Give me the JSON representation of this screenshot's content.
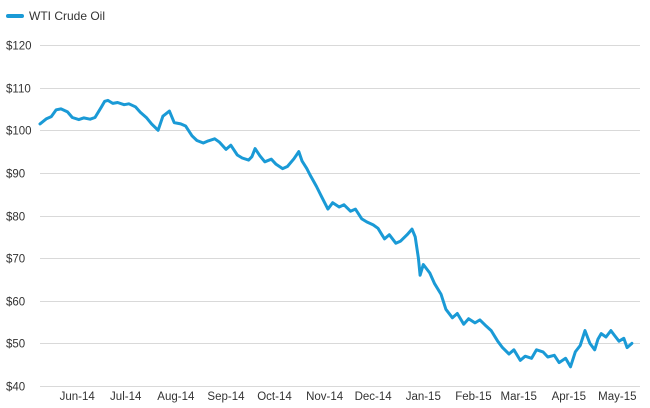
{
  "colors": {
    "series": "#1a9ad6",
    "grid": "#d9d9d9",
    "text": "#333333"
  },
  "chart_data": {
    "type": "line",
    "title": "",
    "xlabel": "",
    "ylabel": "",
    "legend_position": "top-left",
    "grid": "horizontal",
    "ylim": [
      40,
      120
    ],
    "xlim": [
      "2014-05-23",
      "2015-05-29"
    ],
    "y_ticks": [
      {
        "value": 120,
        "label": "$120"
      },
      {
        "value": 110,
        "label": "$110"
      },
      {
        "value": 100,
        "label": "$100"
      },
      {
        "value": 90,
        "label": "$90"
      },
      {
        "value": 80,
        "label": "$80"
      },
      {
        "value": 70,
        "label": "$70"
      },
      {
        "value": 60,
        "label": "$60"
      },
      {
        "value": 50,
        "label": "$50"
      },
      {
        "value": 40,
        "label": "$40"
      }
    ],
    "x_ticks": [
      {
        "date": "2014-06-15",
        "label": "Jun-14"
      },
      {
        "date": "2014-07-15",
        "label": "Jul-14"
      },
      {
        "date": "2014-08-15",
        "label": "Aug-14"
      },
      {
        "date": "2014-09-15",
        "label": "Sep-14"
      },
      {
        "date": "2014-10-15",
        "label": "Oct-14"
      },
      {
        "date": "2014-11-15",
        "label": "Nov-14"
      },
      {
        "date": "2014-12-15",
        "label": "Dec-14"
      },
      {
        "date": "2015-01-15",
        "label": "Jan-15"
      },
      {
        "date": "2015-02-15",
        "label": "Feb-15"
      },
      {
        "date": "2015-03-15",
        "label": "Mar-15"
      },
      {
        "date": "2015-04-15",
        "label": "Apr-15"
      },
      {
        "date": "2015-05-15",
        "label": "May-15"
      }
    ],
    "series": [
      {
        "name": "WTI Crude Oil",
        "points": [
          [
            "2014-05-23",
            101.5
          ],
          [
            "2014-05-27",
            102.7
          ],
          [
            "2014-05-30",
            103.2
          ],
          [
            "2014-06-02",
            104.8
          ],
          [
            "2014-06-05",
            105.0
          ],
          [
            "2014-06-09",
            104.3
          ],
          [
            "2014-06-12",
            103.0
          ],
          [
            "2014-06-16",
            102.5
          ],
          [
            "2014-06-19",
            102.9
          ],
          [
            "2014-06-23",
            102.6
          ],
          [
            "2014-06-26",
            103.0
          ],
          [
            "2014-06-30",
            105.5
          ],
          [
            "2014-07-02",
            106.8
          ],
          [
            "2014-07-04",
            107.0
          ],
          [
            "2014-07-07",
            106.3
          ],
          [
            "2014-07-10",
            106.5
          ],
          [
            "2014-07-14",
            106.0
          ],
          [
            "2014-07-17",
            106.2
          ],
          [
            "2014-07-21",
            105.5
          ],
          [
            "2014-07-24",
            104.2
          ],
          [
            "2014-07-28",
            102.9
          ],
          [
            "2014-07-31",
            101.5
          ],
          [
            "2014-08-04",
            100.0
          ],
          [
            "2014-08-07",
            103.3
          ],
          [
            "2014-08-11",
            104.5
          ],
          [
            "2014-08-14",
            101.8
          ],
          [
            "2014-08-18",
            101.5
          ],
          [
            "2014-08-21",
            101.0
          ],
          [
            "2014-08-25",
            98.7
          ],
          [
            "2014-08-28",
            97.6
          ],
          [
            "2014-09-01",
            97.0
          ],
          [
            "2014-09-04",
            97.5
          ],
          [
            "2014-09-08",
            98.0
          ],
          [
            "2014-09-11",
            97.2
          ],
          [
            "2014-09-15",
            95.5
          ],
          [
            "2014-09-18",
            96.5
          ],
          [
            "2014-09-22",
            94.2
          ],
          [
            "2014-09-25",
            93.5
          ],
          [
            "2014-09-29",
            93.0
          ],
          [
            "2014-10-01",
            93.8
          ],
          [
            "2014-10-03",
            95.7
          ],
          [
            "2014-10-06",
            94.0
          ],
          [
            "2014-10-09",
            92.6
          ],
          [
            "2014-10-13",
            93.2
          ],
          [
            "2014-10-16",
            92.0
          ],
          [
            "2014-10-20",
            91.0
          ],
          [
            "2014-10-23",
            91.5
          ],
          [
            "2014-10-27",
            93.3
          ],
          [
            "2014-10-30",
            95.0
          ],
          [
            "2014-11-01",
            92.8
          ],
          [
            "2014-11-04",
            91.0
          ],
          [
            "2014-11-06",
            89.5
          ],
          [
            "2014-11-10",
            86.8
          ],
          [
            "2014-11-13",
            84.5
          ],
          [
            "2014-11-17",
            81.5
          ],
          [
            "2014-11-20",
            83.0
          ],
          [
            "2014-11-24",
            82.0
          ],
          [
            "2014-11-27",
            82.5
          ],
          [
            "2014-12-01",
            81.0
          ],
          [
            "2014-12-04",
            81.5
          ],
          [
            "2014-12-08",
            79.2
          ],
          [
            "2014-12-11",
            78.5
          ],
          [
            "2014-12-15",
            77.8
          ],
          [
            "2014-12-18",
            77.0
          ],
          [
            "2014-12-22",
            74.5
          ],
          [
            "2014-12-25",
            75.5
          ],
          [
            "2014-12-29",
            73.5
          ],
          [
            "2015-01-01",
            74.0
          ],
          [
            "2015-01-05",
            75.5
          ],
          [
            "2015-01-08",
            76.8
          ],
          [
            "2015-01-10",
            75.0
          ],
          [
            "2015-01-12",
            70.0
          ],
          [
            "2015-01-13",
            66.0
          ],
          [
            "2015-01-15",
            68.5
          ],
          [
            "2015-01-19",
            66.5
          ],
          [
            "2015-01-22",
            64.0
          ],
          [
            "2015-01-26",
            61.5
          ],
          [
            "2015-01-29",
            58.0
          ],
          [
            "2015-02-02",
            56.0
          ],
          [
            "2015-02-05",
            57.0
          ],
          [
            "2015-02-09",
            54.5
          ],
          [
            "2015-02-12",
            55.8
          ],
          [
            "2015-02-16",
            54.8
          ],
          [
            "2015-02-19",
            55.5
          ],
          [
            "2015-02-23",
            54.0
          ],
          [
            "2015-02-26",
            53.0
          ],
          [
            "2015-03-02",
            50.5
          ],
          [
            "2015-03-05",
            49.0
          ],
          [
            "2015-03-09",
            47.5
          ],
          [
            "2015-03-12",
            48.5
          ],
          [
            "2015-03-16",
            46.0
          ],
          [
            "2015-03-19",
            47.0
          ],
          [
            "2015-03-23",
            46.5
          ],
          [
            "2015-03-26",
            48.5
          ],
          [
            "2015-03-30",
            48.0
          ],
          [
            "2015-04-02",
            46.8
          ],
          [
            "2015-04-06",
            47.2
          ],
          [
            "2015-04-09",
            45.5
          ],
          [
            "2015-04-13",
            46.5
          ],
          [
            "2015-04-16",
            44.5
          ],
          [
            "2015-04-19",
            48.0
          ],
          [
            "2015-04-22",
            49.5
          ],
          [
            "2015-04-25",
            53.0
          ],
          [
            "2015-04-28",
            50.0
          ],
          [
            "2015-05-01",
            48.5
          ],
          [
            "2015-05-03",
            51.0
          ],
          [
            "2015-05-05",
            52.3
          ],
          [
            "2015-05-08",
            51.5
          ],
          [
            "2015-05-11",
            53.0
          ],
          [
            "2015-05-13",
            52.0
          ],
          [
            "2015-05-16",
            50.5
          ],
          [
            "2015-05-19",
            51.2
          ],
          [
            "2015-05-21",
            49.0
          ],
          [
            "2015-05-24",
            50.0
          ]
        ]
      }
    ]
  }
}
